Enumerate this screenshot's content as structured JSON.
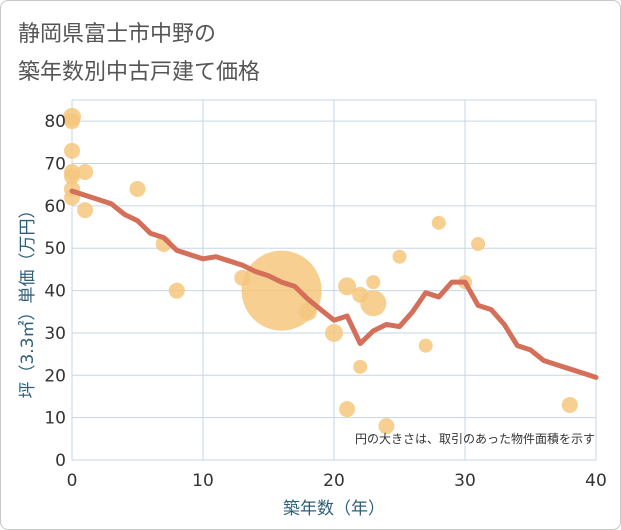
{
  "title_line1": "静岡県富士市中野の",
  "title_line2": "築年数別中古戸建て価格",
  "chart_data": {
    "type": "scatter",
    "title": "静岡県富士市中野の築年数別中古戸建て価格",
    "xlabel": "築年数（年）",
    "ylabel": "坪（3.3㎡）単価（万円）",
    "xlim": [
      0,
      40
    ],
    "ylim": [
      0,
      85
    ],
    "xticks": [
      0,
      10,
      20,
      30,
      40
    ],
    "yticks": [
      0,
      10,
      20,
      30,
      40,
      50,
      60,
      70,
      80
    ],
    "grid": true,
    "note": "円の大きさは、取引のあった物件面積を示す",
    "point_color": "#f5c77e",
    "line_color": "#d4705a",
    "points": [
      {
        "x": 0,
        "y": 81,
        "size": 9
      },
      {
        "x": 0,
        "y": 80,
        "size": 8
      },
      {
        "x": 0,
        "y": 73,
        "size": 8
      },
      {
        "x": 0,
        "y": 68,
        "size": 8
      },
      {
        "x": 0,
        "y": 67,
        "size": 8
      },
      {
        "x": 0,
        "y": 64,
        "size": 8
      },
      {
        "x": 0,
        "y": 62,
        "size": 8
      },
      {
        "x": 1,
        "y": 68,
        "size": 8
      },
      {
        "x": 1,
        "y": 59,
        "size": 8
      },
      {
        "x": 5,
        "y": 64,
        "size": 8
      },
      {
        "x": 7,
        "y": 51,
        "size": 8
      },
      {
        "x": 8,
        "y": 40,
        "size": 8
      },
      {
        "x": 13,
        "y": 43,
        "size": 8
      },
      {
        "x": 16,
        "y": 40,
        "size": 40
      },
      {
        "x": 18,
        "y": 35,
        "size": 9
      },
      {
        "x": 20,
        "y": 30,
        "size": 9
      },
      {
        "x": 21,
        "y": 41,
        "size": 9
      },
      {
        "x": 21,
        "y": 12,
        "size": 8
      },
      {
        "x": 22,
        "y": 39,
        "size": 8
      },
      {
        "x": 22,
        "y": 22,
        "size": 7
      },
      {
        "x": 23,
        "y": 42,
        "size": 7
      },
      {
        "x": 23,
        "y": 37,
        "size": 13
      },
      {
        "x": 24,
        "y": 8,
        "size": 8
      },
      {
        "x": 25,
        "y": 48,
        "size": 7
      },
      {
        "x": 27,
        "y": 27,
        "size": 7
      },
      {
        "x": 28,
        "y": 56,
        "size": 7
      },
      {
        "x": 30,
        "y": 42,
        "size": 7
      },
      {
        "x": 31,
        "y": 51,
        "size": 7
      },
      {
        "x": 38,
        "y": 13,
        "size": 8
      }
    ],
    "trend": {
      "x": [
        0,
        1,
        2,
        3,
        4,
        5,
        6,
        7,
        8,
        9,
        10,
        11,
        12,
        13,
        14,
        15,
        16,
        17,
        18,
        19,
        20,
        21,
        22,
        23,
        24,
        25,
        26,
        27,
        28,
        29,
        30,
        31,
        32,
        33,
        34,
        35,
        36,
        37,
        38,
        39,
        40
      ],
      "y": [
        63.5,
        62.5,
        61.5,
        60.5,
        58,
        56.5,
        53.5,
        52.5,
        49.5,
        48.5,
        47.5,
        48,
        47,
        46,
        44.5,
        43.5,
        42,
        41,
        38,
        35.5,
        33,
        34,
        27.5,
        30.5,
        32,
        31.5,
        35,
        39.5,
        38.5,
        42,
        42,
        36.5,
        35.5,
        32,
        27,
        26,
        23.5,
        22.5,
        21.5,
        20.5,
        19.5
      ]
    }
  }
}
